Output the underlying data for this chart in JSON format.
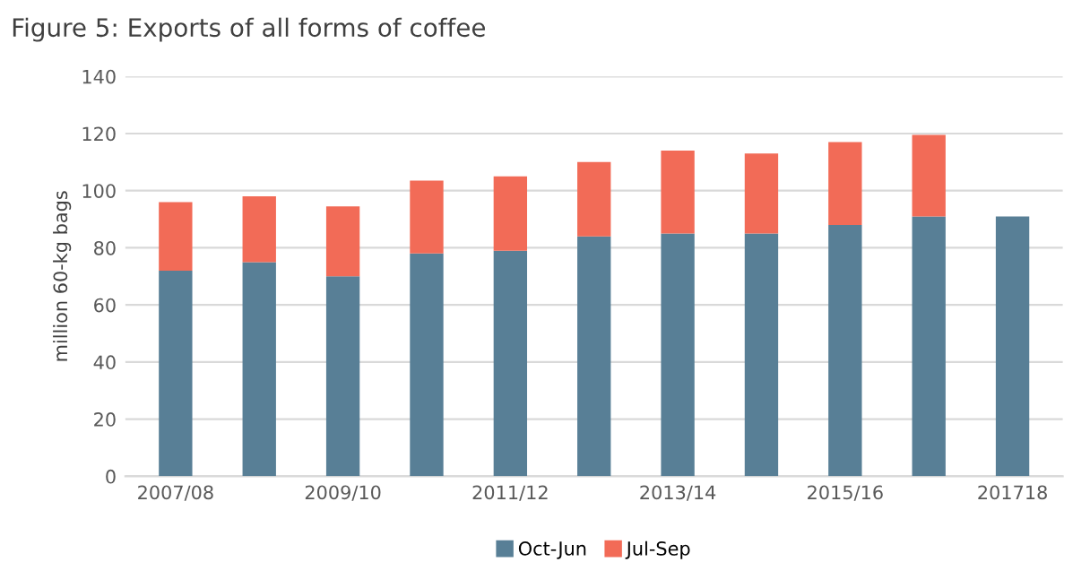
{
  "chart_data": {
    "type": "bar",
    "title": "Figure 5: Exports of all forms of coffee",
    "ylabel": "million 60-kg bags",
    "categories": [
      "2007/08",
      null,
      "2009/10",
      null,
      "2011/12",
      null,
      "2013/14",
      null,
      "2015/16",
      null,
      "201718"
    ],
    "stacked": true,
    "series": [
      {
        "name": "Oct-Jun",
        "color": "#587f96",
        "values": [
          72,
          75,
          70,
          78,
          79,
          84,
          85,
          85,
          88,
          91,
          91
        ]
      },
      {
        "name": "Jul-Sep",
        "color": "#f26b57",
        "values": [
          24,
          23,
          24.5,
          25.5,
          26,
          26,
          29,
          28,
          29,
          28.5,
          null
        ]
      }
    ],
    "ylim": [
      0,
      140
    ],
    "yticks": [
      0,
      20,
      40,
      60,
      80,
      100,
      120,
      140
    ],
    "grid": "y",
    "legend": "bottom"
  }
}
